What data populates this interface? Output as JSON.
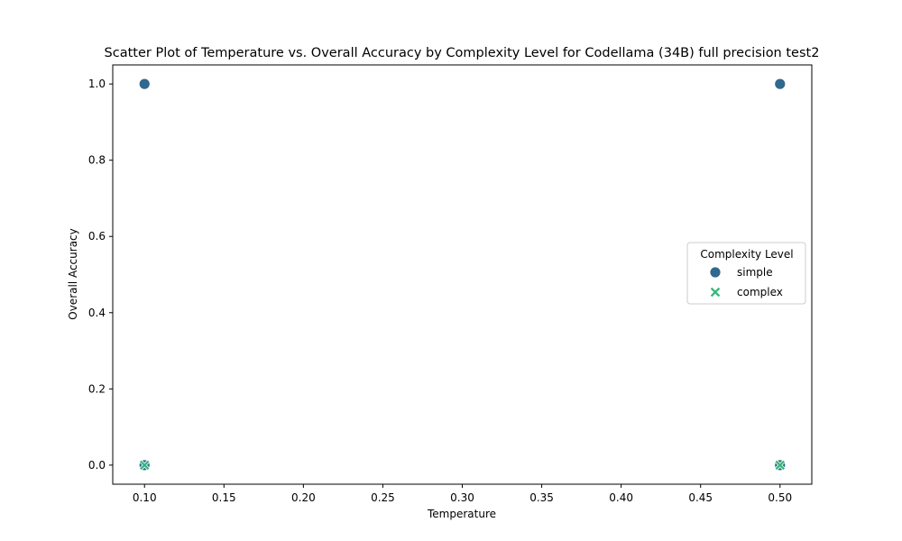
{
  "chart_data": {
    "type": "scatter",
    "title": "Scatter Plot of Temperature vs. Overall Accuracy by Complexity Level for Codellama (34B) full precision test2",
    "xlabel": "Temperature",
    "ylabel": "Overall Accuracy",
    "xlim": [
      0.08,
      0.52
    ],
    "ylim": [
      -0.05,
      1.05
    ],
    "xticks": [
      "0.10",
      "0.15",
      "0.20",
      "0.25",
      "0.30",
      "0.35",
      "0.40",
      "0.45",
      "0.50"
    ],
    "yticks": [
      "0.0",
      "0.2",
      "0.4",
      "0.6",
      "0.8",
      "1.0"
    ],
    "grid": false,
    "legend": {
      "title": "Complexity Level",
      "placement": "center-right"
    },
    "series": [
      {
        "name": "simple",
        "marker": "circle",
        "color": "#31688e",
        "points": [
          {
            "x": 0.1,
            "y": 1.0
          },
          {
            "x": 0.5,
            "y": 1.0
          },
          {
            "x": 0.1,
            "y": 0.0
          },
          {
            "x": 0.5,
            "y": 0.0
          }
        ]
      },
      {
        "name": "complex",
        "marker": "x",
        "color": "#35b779",
        "points": [
          {
            "x": 0.1,
            "y": 0.0
          },
          {
            "x": 0.5,
            "y": 0.0
          }
        ]
      }
    ]
  }
}
